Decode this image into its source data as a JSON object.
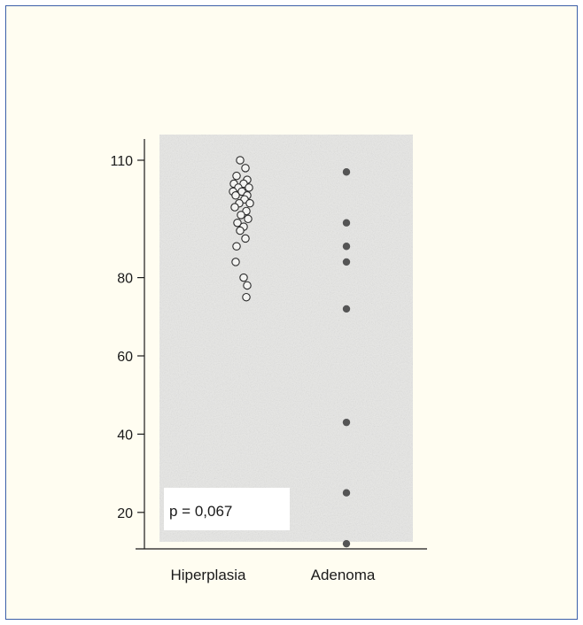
{
  "chart_data": {
    "type": "scatter",
    "categories": [
      "Hiperplasia",
      "Adenoma"
    ],
    "yticks": [
      20,
      40,
      60,
      80,
      110
    ],
    "ylim": [
      0,
      115
    ],
    "grid": false,
    "annotation": "p = 0,067",
    "series": [
      {
        "category": "Hiperplasia",
        "marker": "open-circle",
        "values": [
          110,
          108,
          106,
          105,
          104,
          104,
          103,
          103,
          102,
          102,
          101,
          101,
          100,
          99,
          99,
          98,
          97,
          96,
          95,
          94,
          93,
          92,
          90,
          88,
          84,
          80,
          78,
          75
        ]
      },
      {
        "category": "Adenoma",
        "marker": "filled-circle",
        "values": [
          107,
          94,
          88,
          84,
          72,
          43,
          25,
          12
        ]
      }
    ],
    "colors": {
      "axis": "#1a1a1a",
      "plot_bg": "#e8e8e6",
      "frame_border": "#3b5fa8",
      "marker_open_stroke": "#2a2a2a",
      "marker_filled": "#555555"
    }
  }
}
